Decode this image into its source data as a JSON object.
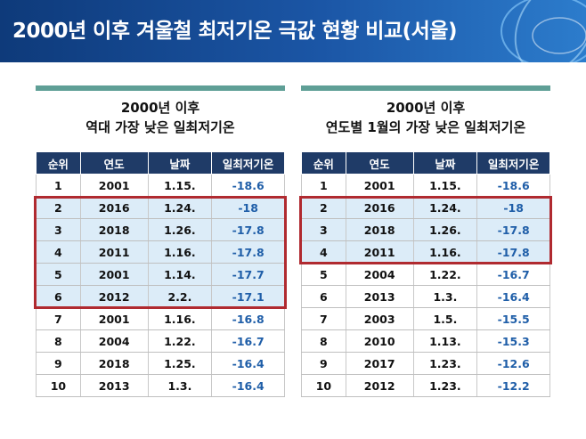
{
  "title": "2000년 이후 겨울철 최저기온 극값 현황 비교(서울)",
  "left": {
    "heading_line1": "2000년 이후",
    "heading_line2": "역대 가장 낮은 일최저기온",
    "columns": [
      "순위",
      "연도",
      "날짜",
      "일최저기온"
    ],
    "rows": [
      [
        "1",
        "2001",
        "1.15.",
        "-18.6"
      ],
      [
        "2",
        "2016",
        "1.24.",
        "-18"
      ],
      [
        "3",
        "2018",
        "1.26.",
        "-17.8"
      ],
      [
        "4",
        "2011",
        "1.16.",
        "-17.8"
      ],
      [
        "5",
        "2001",
        "1.14.",
        "-17.7"
      ],
      [
        "6",
        "2012",
        "2.2.",
        "-17.1"
      ],
      [
        "7",
        "2001",
        "1.16.",
        "-16.8"
      ],
      [
        "8",
        "2004",
        "1.22.",
        "-16.7"
      ],
      [
        "9",
        "2018",
        "1.25.",
        "-16.4"
      ],
      [
        "10",
        "2013",
        "1.3.",
        "-16.4"
      ]
    ]
  },
  "right": {
    "heading_line1": "2000년 이후",
    "heading_line2": "연도별 1월의 가장 낮은 일최저기온",
    "columns": [
      "순위",
      "연도",
      "날짜",
      "일최저기온"
    ],
    "rows": [
      [
        "1",
        "2001",
        "1.15.",
        "-18.6"
      ],
      [
        "2",
        "2016",
        "1.24.",
        "-18"
      ],
      [
        "3",
        "2018",
        "1.26.",
        "-17.8"
      ],
      [
        "4",
        "2011",
        "1.16.",
        "-17.8"
      ],
      [
        "5",
        "2004",
        "1.22.",
        "-16.7"
      ],
      [
        "6",
        "2013",
        "1.3.",
        "-16.4"
      ],
      [
        "7",
        "2003",
        "1.5.",
        "-15.5"
      ],
      [
        "8",
        "2010",
        "1.13.",
        "-15.3"
      ],
      [
        "9",
        "2017",
        "1.23.",
        "-12.6"
      ],
      [
        "10",
        "2012",
        "1.23.",
        "-12.2"
      ]
    ]
  },
  "colors": {
    "header_bg": "#1f3b67",
    "highlight_row": "#dcecf8",
    "highlight_border": "#b02a30",
    "temp_text": "#1f5ea8",
    "accent_bar": "#5f9f96"
  }
}
